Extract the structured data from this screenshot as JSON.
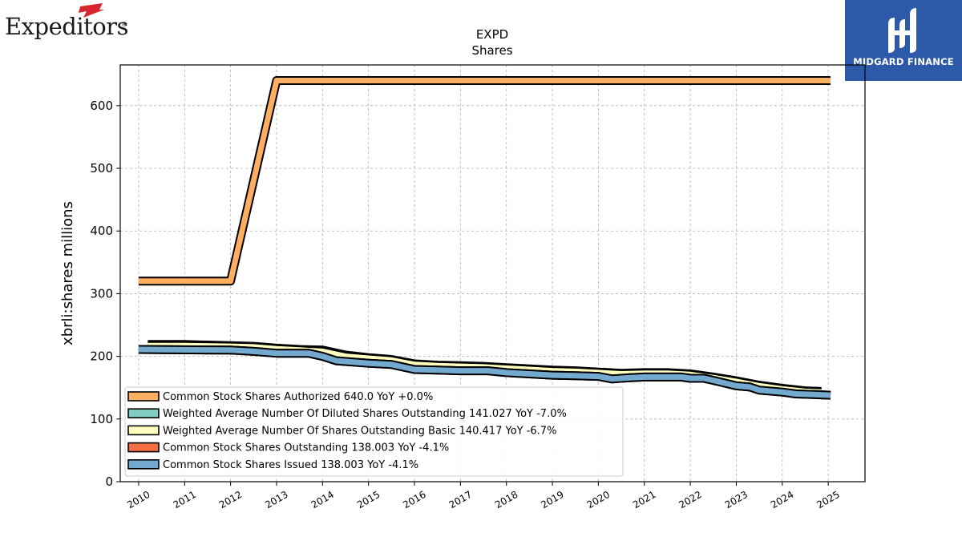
{
  "header": {
    "left_logo_text": "Expeditors",
    "left_logo_registered": "®",
    "right_logo_text": "MIDGARD FINANCE"
  },
  "chart_data": {
    "type": "line",
    "title": "EXPD",
    "subtitle": "Shares",
    "xlabel": "",
    "ylabel": "xbrli:shares millions",
    "xlim": [
      2009.6,
      2025.8
    ],
    "ylim": [
      0,
      665
    ],
    "x_ticks": [
      2010,
      2011,
      2012,
      2013,
      2014,
      2015,
      2016,
      2017,
      2018,
      2019,
      2020,
      2021,
      2022,
      2023,
      2024,
      2025
    ],
    "y_ticks": [
      0,
      100,
      200,
      300,
      400,
      500,
      600
    ],
    "grid": true,
    "legend_position": "lower-left",
    "series": [
      {
        "name": "Common Stock Shares Authorized",
        "legend": "Common Stock Shares Authorized  640.0 YoY +0.0%",
        "color": "#fdae61",
        "points": [
          [
            2010.0,
            320
          ],
          [
            2012.0,
            320
          ],
          [
            2013.0,
            640
          ],
          [
            2025.05,
            640
          ]
        ]
      },
      {
        "name": "Weighted Average Number Of Diluted Shares Outstanding",
        "legend": "Weighted Average Number Of Diluted Shares Outstanding  141.027 YoY -7.0%",
        "color": "#80cdc1",
        "points": [
          [
            2010.2,
            219
          ],
          [
            2011.0,
            219
          ],
          [
            2012.0,
            217
          ],
          [
            2012.5,
            216
          ],
          [
            2013.0,
            213
          ],
          [
            2013.5,
            211
          ],
          [
            2014.0,
            210
          ],
          [
            2014.5,
            202
          ],
          [
            2015.0,
            198
          ],
          [
            2015.5,
            195
          ],
          [
            2016.0,
            188
          ],
          [
            2016.5,
            186
          ],
          [
            2017.0,
            185
          ],
          [
            2017.5,
            184
          ],
          [
            2018.0,
            182
          ],
          [
            2018.5,
            180
          ],
          [
            2019.0,
            178
          ],
          [
            2019.5,
            177
          ],
          [
            2020.0,
            175
          ],
          [
            2020.5,
            173
          ],
          [
            2021.0,
            174
          ],
          [
            2021.5,
            174
          ],
          [
            2022.0,
            172
          ],
          [
            2022.5,
            167
          ],
          [
            2023.0,
            161
          ],
          [
            2023.5,
            154
          ],
          [
            2024.0,
            149
          ],
          [
            2024.5,
            145
          ],
          [
            2024.85,
            144
          ]
        ]
      },
      {
        "name": "Weighted Average Number Of Shares Outstanding Basic",
        "legend": "Weighted Average Number Of Shares Outstanding Basic  140.417 YoY -6.7%",
        "color": "#ffffbf",
        "points": [
          [
            2010.2,
            217
          ],
          [
            2011.0,
            217
          ],
          [
            2012.0,
            216
          ],
          [
            2012.5,
            215
          ],
          [
            2013.0,
            212
          ],
          [
            2013.5,
            210
          ],
          [
            2014.0,
            208
          ],
          [
            2014.5,
            200
          ],
          [
            2015.0,
            197
          ],
          [
            2015.5,
            194
          ],
          [
            2016.0,
            187
          ],
          [
            2016.5,
            185
          ],
          [
            2017.0,
            184
          ],
          [
            2017.5,
            183
          ],
          [
            2018.0,
            181
          ],
          [
            2018.5,
            179
          ],
          [
            2019.0,
            177
          ],
          [
            2019.5,
            176
          ],
          [
            2020.0,
            174
          ],
          [
            2020.5,
            172
          ],
          [
            2021.0,
            173
          ],
          [
            2021.5,
            173
          ],
          [
            2022.0,
            171
          ],
          [
            2022.5,
            166
          ],
          [
            2023.0,
            160
          ],
          [
            2023.5,
            153
          ],
          [
            2024.0,
            148
          ],
          [
            2024.5,
            144
          ],
          [
            2024.85,
            143
          ]
        ]
      },
      {
        "name": "Common Stock Shares Outstanding",
        "legend": "Common Stock Shares Outstanding  138.003 YoY -4.1%",
        "color": "#f46d43",
        "points": [
          [
            2010.0,
            211
          ],
          [
            2012.0,
            210
          ],
          [
            2012.5,
            208
          ],
          [
            2013.0,
            205
          ],
          [
            2013.7,
            205
          ],
          [
            2014.0,
            200
          ],
          [
            2014.3,
            193
          ],
          [
            2015.0,
            189
          ],
          [
            2015.5,
            187
          ],
          [
            2016.0,
            179
          ],
          [
            2016.5,
            178
          ],
          [
            2017.0,
            177
          ],
          [
            2017.6,
            177
          ],
          [
            2018.0,
            174
          ],
          [
            2018.5,
            172
          ],
          [
            2019.0,
            170
          ],
          [
            2019.5,
            169
          ],
          [
            2020.0,
            168
          ],
          [
            2020.3,
            164
          ],
          [
            2020.7,
            166
          ],
          [
            2021.0,
            167
          ],
          [
            2021.8,
            167
          ],
          [
            2022.0,
            165
          ],
          [
            2022.3,
            165
          ],
          [
            2022.6,
            160
          ],
          [
            2023.0,
            153
          ],
          [
            2023.3,
            151
          ],
          [
            2023.5,
            146
          ],
          [
            2024.0,
            143
          ],
          [
            2024.3,
            140
          ],
          [
            2024.7,
            139
          ],
          [
            2025.05,
            138
          ]
        ]
      },
      {
        "name": "Common Stock Shares Issued",
        "legend": "Common Stock Shares Issued  138.003 YoY -4.1%",
        "color": "#74a9cf",
        "points": [
          [
            2010.0,
            211
          ],
          [
            2012.0,
            210
          ],
          [
            2012.5,
            208
          ],
          [
            2013.0,
            205
          ],
          [
            2013.7,
            205
          ],
          [
            2014.0,
            200
          ],
          [
            2014.3,
            193
          ],
          [
            2015.0,
            189
          ],
          [
            2015.5,
            187
          ],
          [
            2016.0,
            179
          ],
          [
            2016.5,
            178
          ],
          [
            2017.0,
            177
          ],
          [
            2017.6,
            177
          ],
          [
            2018.0,
            174
          ],
          [
            2018.5,
            172
          ],
          [
            2019.0,
            170
          ],
          [
            2019.5,
            169
          ],
          [
            2020.0,
            168
          ],
          [
            2020.3,
            164
          ],
          [
            2020.7,
            166
          ],
          [
            2021.0,
            167
          ],
          [
            2021.8,
            167
          ],
          [
            2022.0,
            165
          ],
          [
            2022.3,
            165
          ],
          [
            2022.6,
            160
          ],
          [
            2023.0,
            153
          ],
          [
            2023.3,
            151
          ],
          [
            2023.5,
            146
          ],
          [
            2024.0,
            143
          ],
          [
            2024.3,
            140
          ],
          [
            2024.7,
            139
          ],
          [
            2025.05,
            138
          ]
        ]
      }
    ]
  }
}
